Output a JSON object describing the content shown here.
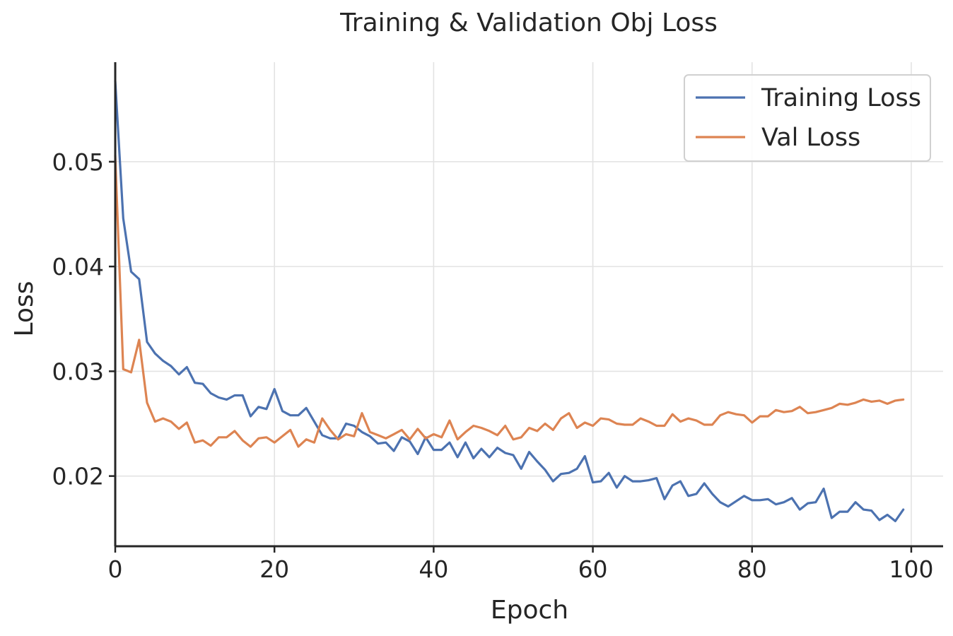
{
  "chart_data": {
    "type": "line",
    "title": "Training & Validation Obj Loss",
    "xlabel": "Epoch",
    "ylabel": "Loss",
    "xlim": [
      0,
      104
    ],
    "ylim": [
      0.0133,
      0.0595
    ],
    "xticks": [
      0,
      20,
      40,
      60,
      80,
      100
    ],
    "xtick_labels": [
      "0",
      "20",
      "40",
      "60",
      "80",
      "100"
    ],
    "yticks": [
      0.02,
      0.03,
      0.04,
      0.05
    ],
    "ytick_labels": [
      "0.02",
      "0.03",
      "0.04",
      "0.05"
    ],
    "grid": true,
    "legend_position": "top-right",
    "series": [
      {
        "name": "Training Loss",
        "color": "#4c72b0",
        "values": [
          0.0577,
          0.0446,
          0.0395,
          0.0388,
          0.0328,
          0.0317,
          0.031,
          0.0305,
          0.0297,
          0.0304,
          0.0289,
          0.0288,
          0.0279,
          0.0275,
          0.0273,
          0.0277,
          0.0277,
          0.0257,
          0.0266,
          0.0264,
          0.0283,
          0.0262,
          0.0258,
          0.0258,
          0.0265,
          0.0252,
          0.0239,
          0.0236,
          0.0236,
          0.025,
          0.0248,
          0.0242,
          0.0238,
          0.0231,
          0.0232,
          0.0224,
          0.0237,
          0.0233,
          0.0221,
          0.0237,
          0.0225,
          0.0225,
          0.0232,
          0.0218,
          0.0232,
          0.0217,
          0.0226,
          0.0218,
          0.0227,
          0.0222,
          0.022,
          0.0207,
          0.0223,
          0.0214,
          0.0206,
          0.0195,
          0.0202,
          0.0203,
          0.0207,
          0.0219,
          0.0194,
          0.0195,
          0.0203,
          0.0189,
          0.02,
          0.0195,
          0.0195,
          0.0196,
          0.0198,
          0.0178,
          0.0191,
          0.0195,
          0.0181,
          0.0183,
          0.0193,
          0.0183,
          0.0175,
          0.0171,
          0.0176,
          0.0181,
          0.0177,
          0.0177,
          0.0178,
          0.0173,
          0.0175,
          0.0179,
          0.0168,
          0.0174,
          0.0175,
          0.0188,
          0.016,
          0.0166,
          0.0166,
          0.0175,
          0.0168,
          0.0167,
          0.0158,
          0.0163,
          0.0157,
          0.0168
        ]
      },
      {
        "name": "Val Loss",
        "color": "#dd8452",
        "values": [
          0.0506,
          0.0302,
          0.0299,
          0.033,
          0.027,
          0.0252,
          0.0255,
          0.0252,
          0.0245,
          0.0251,
          0.0232,
          0.0234,
          0.0229,
          0.0237,
          0.0237,
          0.0243,
          0.0234,
          0.0228,
          0.0236,
          0.0237,
          0.0232,
          0.0238,
          0.0244,
          0.0228,
          0.0235,
          0.0232,
          0.0255,
          0.0244,
          0.0235,
          0.024,
          0.0238,
          0.026,
          0.0242,
          0.0239,
          0.0236,
          0.024,
          0.0244,
          0.0235,
          0.0245,
          0.0236,
          0.024,
          0.0237,
          0.0253,
          0.0235,
          0.0242,
          0.0248,
          0.0246,
          0.0243,
          0.0239,
          0.0248,
          0.0235,
          0.0237,
          0.0246,
          0.0243,
          0.025,
          0.0244,
          0.0255,
          0.026,
          0.0246,
          0.0251,
          0.0248,
          0.0255,
          0.0254,
          0.025,
          0.0249,
          0.0249,
          0.0255,
          0.0252,
          0.0248,
          0.0248,
          0.0259,
          0.0252,
          0.0255,
          0.0253,
          0.0249,
          0.0249,
          0.0258,
          0.0261,
          0.0259,
          0.0258,
          0.0251,
          0.0257,
          0.0257,
          0.0263,
          0.0261,
          0.0262,
          0.0266,
          0.026,
          0.0261,
          0.0263,
          0.0265,
          0.0269,
          0.0268,
          0.027,
          0.0273,
          0.0271,
          0.0272,
          0.0269,
          0.0272,
          0.0273
        ]
      }
    ]
  }
}
